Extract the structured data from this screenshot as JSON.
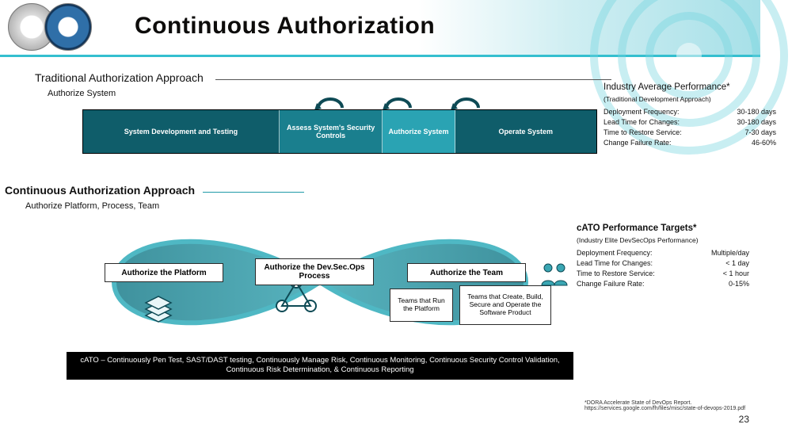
{
  "colors": {
    "header_border": "#34bfcf",
    "teal_dark": "#0f5d6a",
    "teal_mid": "#1a7f8e",
    "teal_light": "#2aa3b3",
    "cont_rule": "#1f9aa8",
    "infinity_stroke": "#4fb8c4",
    "infinity_fill_a": "#1d7e8c",
    "infinity_fill_b": "#3aa6b3",
    "loop_arrow": "#0e4a55",
    "pill_border": "#2b2b2b"
  },
  "header": {
    "title": "Continuous Authorization"
  },
  "page_number": "23",
  "footnote": "*DORA Accelerate State of DevOps Report. https://services.google.com/fh/files/misc/state-of-devops-2019.pdf",
  "traditional": {
    "title": "Traditional Authorization Approach",
    "subtitle": "Authorize System",
    "boxes": [
      {
        "label": "System Development and Testing",
        "flex": 2.4,
        "bg": "teal_dark"
      },
      {
        "label": "Assess System's Security Controls",
        "flex": 1.2,
        "bg": "teal_mid"
      },
      {
        "label": "Authorize System",
        "flex": 0.8,
        "bg": "teal_light"
      },
      {
        "label": "Operate System",
        "flex": 1.7,
        "bg": "teal_dark"
      }
    ],
    "metrics": {
      "title": "Industry Average Performance*",
      "subtitle": "(Traditional Development Approach)",
      "rows": [
        {
          "k": "Deployment Frequency:",
          "v": "30-180 days"
        },
        {
          "k": "Lead Time for Changes:",
          "v": "30-180 days"
        },
        {
          "k": "Time to Restore Service:",
          "v": "7-30 days"
        },
        {
          "k": "Change Failure Rate:",
          "v": "46-60%"
        }
      ]
    }
  },
  "continuous": {
    "title": "Continuous Authorization Approach",
    "subtitle": "Authorize Platform, Process, Team",
    "pills": {
      "platform": "Authorize the Platform",
      "process": "Authorize the Dev.Sec.Ops Process",
      "team": "Authorize the Team",
      "team_run": "Teams that Run the Platform",
      "team_build": "Teams that Create, Build, Secure and Operate the Software Product"
    },
    "banner": "cATO – Continuously Pen Test, SAST/DAST testing, Continuously Manage Risk, Continuous Monitoring, Continuous Security Control Validation, Continuous Risk Determination, & Continuous Reporting",
    "metrics": {
      "title": "cATO Performance Targets*",
      "subtitle": "(Industry Elite DevSecOps Performance)",
      "rows": [
        {
          "k": "Deployment Frequency:",
          "v": "Multiple/day"
        },
        {
          "k": "Lead Time for Changes:",
          "v": "< 1 day"
        },
        {
          "k": "Time to Restore Service:",
          "v": "< 1 hour"
        },
        {
          "k": "Change Failure Rate:",
          "v": "0-15%"
        }
      ]
    }
  }
}
